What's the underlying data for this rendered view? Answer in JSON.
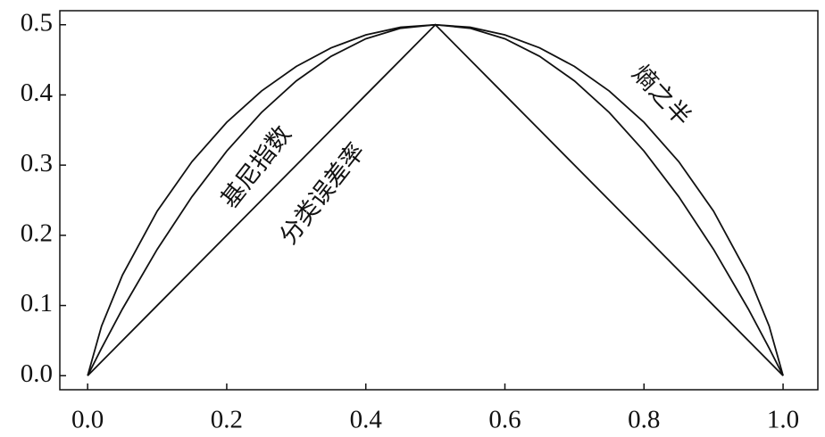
{
  "chart_data": {
    "type": "line",
    "x": [
      0,
      0.02,
      0.05,
      0.1,
      0.15,
      0.2,
      0.25,
      0.3,
      0.35,
      0.4,
      0.45,
      0.5,
      0.55,
      0.6,
      0.65,
      0.7,
      0.75,
      0.8,
      0.85,
      0.9,
      0.95,
      0.98,
      1
    ],
    "series": [
      {
        "name": "熵之半",
        "color": "#111111",
        "values": [
          0,
          0.0707,
          0.1432,
          0.2345,
          0.3049,
          0.361,
          0.4056,
          0.4406,
          0.467,
          0.4855,
          0.4964,
          0.5,
          0.4964,
          0.4855,
          0.467,
          0.4406,
          0.4056,
          0.361,
          0.3049,
          0.2345,
          0.1432,
          0.0707,
          0
        ]
      },
      {
        "name": "基尼指数",
        "color": "#111111",
        "values": [
          0,
          0.0392,
          0.095,
          0.18,
          0.255,
          0.32,
          0.375,
          0.42,
          0.455,
          0.48,
          0.495,
          0.5,
          0.495,
          0.48,
          0.455,
          0.42,
          0.375,
          0.32,
          0.255,
          0.18,
          0.095,
          0.0392,
          0
        ]
      },
      {
        "name": "分类误差率",
        "color": "#111111",
        "values": [
          0,
          0.02,
          0.05,
          0.1,
          0.15,
          0.2,
          0.25,
          0.3,
          0.35,
          0.4,
          0.45,
          0.5,
          0.45,
          0.4,
          0.35,
          0.3,
          0.25,
          0.2,
          0.15,
          0.1,
          0.05,
          0.02,
          0
        ]
      }
    ],
    "xlim": [
      -0.04,
      1.05
    ],
    "ylim": [
      -0.02,
      0.52
    ],
    "xticks": [
      {
        "value": 0,
        "label": "0.0"
      },
      0.2,
      0.4,
      0.6,
      0.8,
      {
        "value": 1,
        "label": "1.0"
      }
    ],
    "yticks": [
      {
        "value": 0,
        "label": "0.0"
      },
      0.1,
      0.2,
      0.3,
      0.4,
      0.5
    ],
    "grid": false
  }
}
